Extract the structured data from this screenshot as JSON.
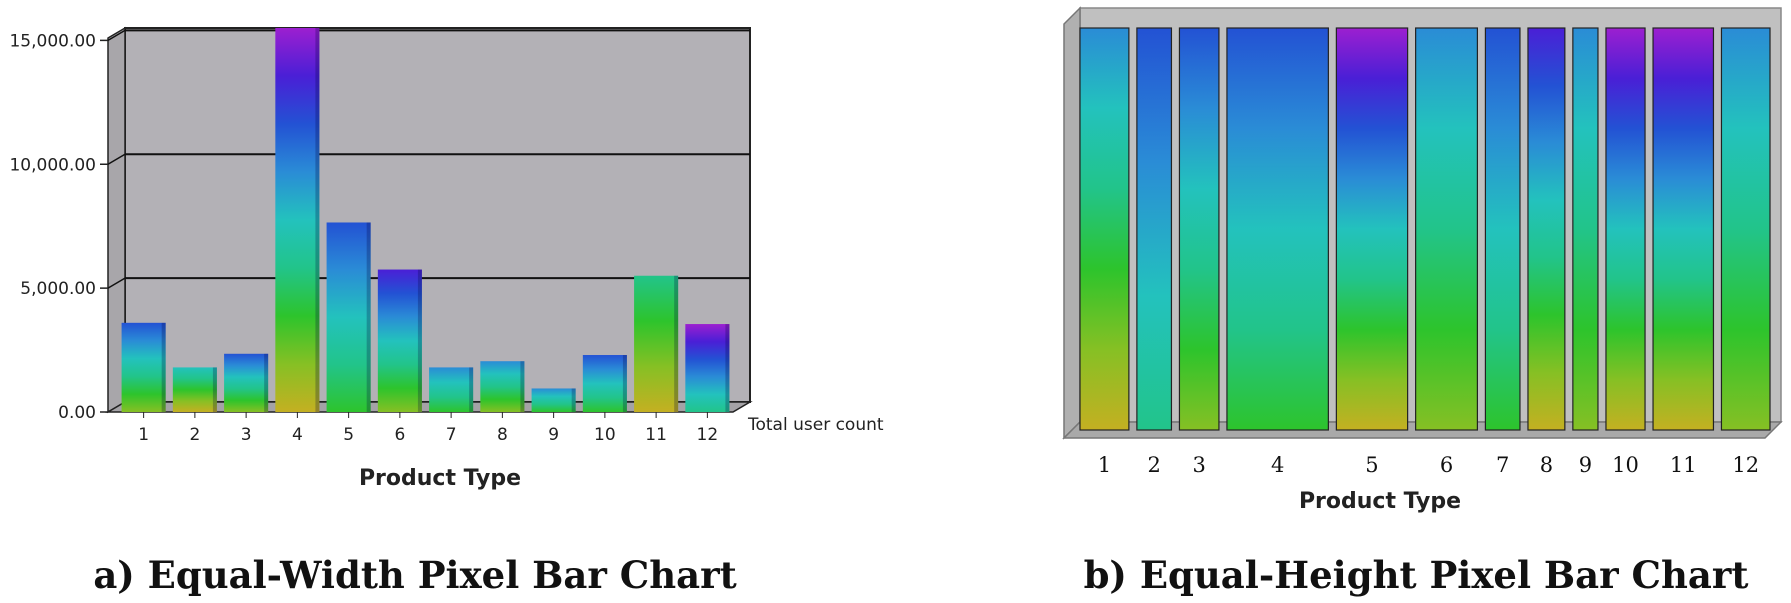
{
  "chart_data": [
    {
      "type": "bar",
      "caption": "a) Equal-Width Pixel Bar Chart",
      "categories": [
        "1",
        "2",
        "3",
        "4",
        "5",
        "6",
        "7",
        "8",
        "9",
        "10",
        "11",
        "12"
      ],
      "values": [
        3600,
        1800,
        2350,
        15500,
        7650,
        5750,
        1800,
        2050,
        950,
        2300,
        5500,
        3550
      ],
      "yticks": [
        "0.00",
        "5,000.00",
        "10,000.00",
        "15,000.00"
      ],
      "ytick_values": [
        0,
        5000,
        10000,
        15000
      ],
      "ylim": [
        0,
        15500
      ],
      "xlabel": "Product Type",
      "ylabel": "",
      "series_label": "Total user count",
      "grid": true
    },
    {
      "type": "bar",
      "caption": "b) Equal-Height Pixel Bar Chart",
      "categories": [
        "1",
        "2",
        "3",
        "4",
        "5",
        "6",
        "7",
        "8",
        "9",
        "10",
        "11",
        "12"
      ],
      "widths": [
        3600,
        1800,
        2350,
        15500,
        7650,
        5750,
        1800,
        2050,
        950,
        2300,
        5500,
        3550
      ],
      "xlabel": "Product Type",
      "ylabel": ""
    }
  ],
  "colors": {
    "panel_a_background": "#b3b1b6",
    "panel_b_background": "#b8b8b8",
    "ramp": [
      "#c4b022",
      "#86c024",
      "#2dc42c",
      "#22c48a",
      "#23c2bd",
      "#2a8cd6",
      "#2352d4",
      "#4a1fd6",
      "#9c1fd0"
    ]
  }
}
